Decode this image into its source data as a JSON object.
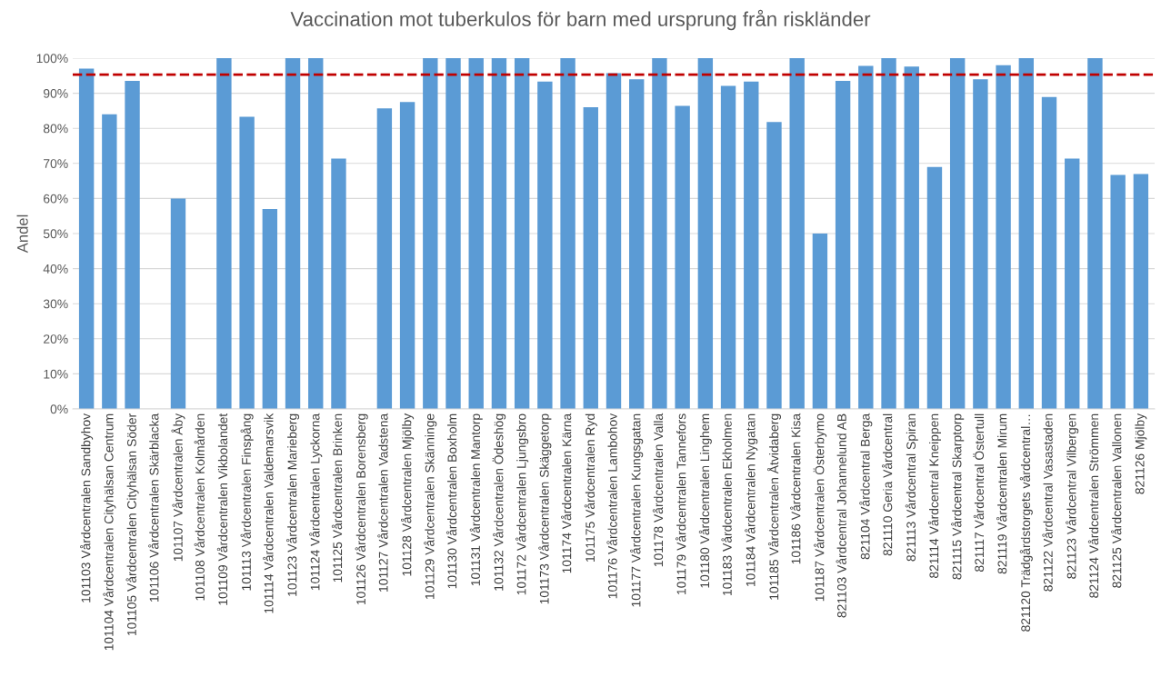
{
  "chart_data": {
    "type": "bar",
    "title": "Vaccination mot tuberkulos för barn med ursprung från riskländer",
    "ylabel": "Andel",
    "categories": [
      "101103 Vårdcentralen Sandbyhov",
      "101104 Vårdcentralen Cityhälsan Centrum",
      "101105 Vårdcentralen Cityhälsan Söder",
      "101106 Vårdcentralen Skärblacka",
      "101107 Vårdcentralen Åby",
      "101108 Vårdcentralen Kolmården",
      "101109 Vårdcentralen Vikbolandet",
      "101113 Vårdcentralen Finspång",
      "101114 Vårdcentralen Valdemarsvik",
      "101123 Vårdcentralen Marieberg",
      "101124 Vårdcentralen Lyckorna",
      "101125 Vårdcentralen Brinken",
      "101126 Vårdcentralen Borensberg",
      "101127 Vårdcentralen Vadstena",
      "101128 Vårdcentralen Mjölby",
      "101129 Vårdcentralen Skänninge",
      "101130 Vårdcentralen Boxholm",
      "101131 Vårdcentralen Mantorp",
      "101132 Vårdcentralen Ödeshög",
      "101172 Vårdcentralen Ljungsbro",
      "101173 Vårdcentralen Skäggetorp",
      "101174 Vårdcentralen Kärna",
      "101175 Vårdcentralen Ryd",
      "101176 Vårdcentralen Lambohov",
      "101177 Vårdcentralen Kungsgatan",
      "101178 Vårdcentralen Valla",
      "101179 Vårdcentralen Tannefors",
      "101180 Vårdcentralen Linghem",
      "101183 Vårdcentralen Ekholmen",
      "101184 Vårdcentralen Nygatan",
      "101185 Vårdcentralen Åtvidaberg",
      "101186 Vårdcentralen Kisa",
      "101187 Vårdcentralen Österbymo",
      "821103 Vårdcentral Johannelund AB",
      "821104 Vårdcentral Berga",
      "821110 Geria Vårdcentral",
      "821113 Vårdcentral Spiran",
      "821114 Vårdcentral Kneippen",
      "821115 Vårdcentral Skarptorp",
      "821117 Vårdcentral Östertull",
      "821119 Vårdcentralen Mirum",
      "821120 Trädgårdstorgets vårdcentral…",
      "821122 Vårdcentral Vasastaden",
      "821123 Vårdcentral Vilbergen",
      "821124 Vårdcentralen Strömmen",
      "821125 Vårdcentralen Vallonen",
      "821126 Mjölby"
    ],
    "values": [
      97,
      84,
      93.5,
      null,
      60,
      null,
      100,
      83.3,
      57,
      100,
      100,
      71.4,
      null,
      85.7,
      87.5,
      100,
      100,
      100,
      100,
      100,
      93.3,
      100,
      86,
      95.7,
      94,
      100,
      86.4,
      100,
      92.1,
      93.3,
      81.8,
      100,
      50,
      93.5,
      97.8,
      100,
      97.6,
      69,
      100,
      94,
      98,
      100,
      88.9,
      71.4,
      100,
      66.7,
      67
    ],
    "color": "#5b9bd5",
    "ylim": [
      0,
      100
    ],
    "yticks": [
      {
        "value": 0,
        "label": "0%"
      },
      {
        "value": 10,
        "label": "10%"
      },
      {
        "value": 20,
        "label": "20%"
      },
      {
        "value": 30,
        "label": "30%"
      },
      {
        "value": 40,
        "label": "40%"
      },
      {
        "value": 50,
        "label": "50%"
      },
      {
        "value": 60,
        "label": "60%"
      },
      {
        "value": 70,
        "label": "70%"
      },
      {
        "value": 80,
        "label": "80%"
      },
      {
        "value": 90,
        "label": "90%"
      },
      {
        "value": 100,
        "label": "100%"
      }
    ],
    "grid": "y",
    "ref_lines": [
      {
        "axis": "y",
        "value": 95.3,
        "color": "#c00000",
        "line_style": "dashed"
      }
    ]
  }
}
